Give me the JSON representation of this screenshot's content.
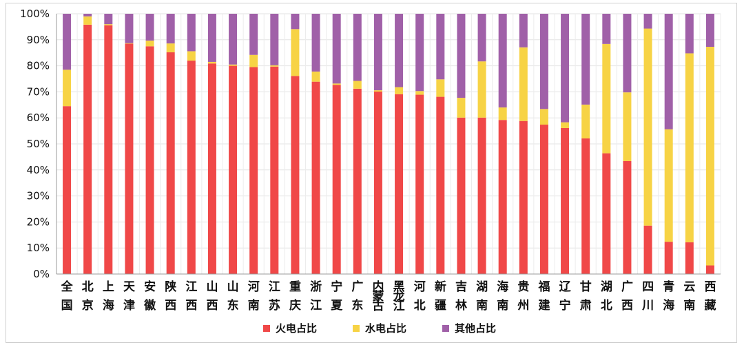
{
  "chart_data": {
    "type": "bar",
    "stacked": true,
    "percent": true,
    "title": "",
    "xlabel": "",
    "ylabel": "",
    "ylim": [
      0,
      100
    ],
    "yticks": [
      "0%",
      "10%",
      "20%",
      "30%",
      "40%",
      "50%",
      "60%",
      "70%",
      "80%",
      "90%",
      "100%"
    ],
    "grid": true,
    "legend_position": "bottom",
    "categories": [
      "全国",
      "北京",
      "上海",
      "天津",
      "安徽",
      "陕西",
      "江西",
      "山西",
      "山东",
      "河南",
      "江苏",
      "重庆",
      "浙江",
      "宁夏",
      "广东",
      "内蒙古",
      "黑龙江",
      "河北",
      "新疆",
      "吉林",
      "湖南",
      "海南",
      "贵州",
      "福建",
      "辽宁",
      "甘肃",
      "湖北",
      "广西",
      "四川",
      "青海",
      "云南",
      "西藏"
    ],
    "series": [
      {
        "name": "火电占比",
        "color": "#f04848",
        "values": [
          64.5,
          95.8,
          95.6,
          88.5,
          87.5,
          85.2,
          82.0,
          80.9,
          80.0,
          79.5,
          79.7,
          76.1,
          73.9,
          72.7,
          71.2,
          70.1,
          69.1,
          68.9,
          68.1,
          60.1,
          60.1,
          59.2,
          58.8,
          57.4,
          56.1,
          52.1,
          46.4,
          43.4,
          18.6,
          12.4,
          12.2,
          3.3
        ]
      },
      {
        "name": "水电占比",
        "color": "#f7d345",
        "values": [
          14.0,
          3.2,
          0.4,
          0.2,
          2.2,
          3.4,
          3.6,
          0.6,
          0.5,
          4.7,
          0.5,
          18.0,
          3.9,
          0.5,
          3.0,
          0.5,
          2.7,
          1.4,
          6.7,
          7.6,
          21.6,
          4.8,
          28.3,
          6.0,
          2.2,
          13.0,
          42.0,
          26.4,
          75.7,
          43.2,
          72.6,
          84.0
        ]
      },
      {
        "name": "其他占比",
        "color": "#a060a8",
        "values": [
          21.5,
          1.0,
          4.0,
          11.3,
          10.3,
          11.4,
          14.4,
          18.5,
          19.5,
          15.8,
          19.8,
          5.9,
          22.2,
          26.8,
          25.8,
          29.4,
          28.2,
          29.7,
          25.2,
          32.3,
          18.3,
          36.0,
          12.9,
          36.6,
          41.7,
          34.9,
          11.6,
          30.2,
          5.7,
          44.4,
          15.2,
          12.7
        ]
      }
    ]
  }
}
